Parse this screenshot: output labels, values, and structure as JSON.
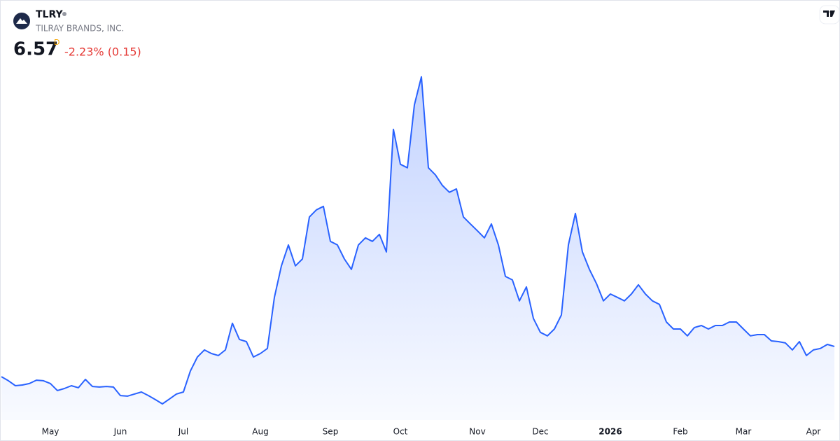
{
  "chart_data": {
    "type": "area",
    "symbol": "TLRY",
    "company": "TILRAY BRANDS, INC.",
    "price": 6.57,
    "price_flag": "D",
    "change": "-2.23% (0.15)",
    "color": "#2962ff",
    "ylim": [
      2.6,
      23
    ],
    "categories": [
      null,
      null,
      null,
      null,
      null,
      null,
      null,
      "May",
      null,
      null,
      null,
      null,
      null,
      null,
      null,
      null,
      null,
      "Jun",
      null,
      null,
      null,
      null,
      null,
      null,
      null,
      null,
      "Jul",
      null,
      null,
      null,
      null,
      null,
      null,
      null,
      null,
      null,
      null,
      "Aug",
      null,
      null,
      null,
      null,
      null,
      null,
      null,
      null,
      null,
      "Sep",
      null,
      null,
      null,
      null,
      null,
      null,
      null,
      null,
      null,
      "Oct",
      null,
      null,
      null,
      null,
      null,
      null,
      null,
      null,
      null,
      null,
      "Nov",
      null,
      null,
      null,
      null,
      null,
      null,
      null,
      null,
      "Dec",
      null,
      null,
      null,
      null,
      null,
      null,
      null,
      null,
      null,
      "2026",
      null,
      null,
      null,
      null,
      null,
      null,
      null,
      null,
      null,
      "Feb",
      null,
      null,
      null,
      null,
      null,
      null,
      null,
      null,
      "Mar",
      null,
      null,
      null,
      null,
      null,
      null,
      null,
      null,
      null,
      "Apr",
      null,
      null,
      null
    ],
    "values": [
      4.94,
      4.72,
      4.45,
      4.49,
      4.57,
      4.75,
      4.72,
      4.57,
      4.19,
      4.3,
      4.45,
      4.34,
      4.79,
      4.41,
      4.38,
      4.41,
      4.38,
      3.92,
      3.89,
      4.0,
      4.11,
      3.92,
      3.7,
      3.47,
      3.73,
      4.0,
      4.11,
      5.25,
      6.0,
      6.38,
      6.19,
      6.08,
      6.38,
      7.82,
      6.95,
      6.83,
      6.0,
      6.19,
      6.46,
      9.22,
      10.92,
      12.05,
      10.92,
      11.29,
      13.56,
      13.94,
      14.13,
      12.24,
      12.05,
      11.29,
      10.73,
      12.05,
      12.43,
      12.24,
      12.62,
      11.67,
      18.29,
      16.4,
      16.21,
      19.61,
      21.12,
      16.21,
      15.83,
      15.26,
      14.89,
      15.07,
      13.56,
      13.18,
      12.81,
      12.43,
      13.18,
      12.05,
      10.35,
      10.16,
      9.03,
      9.78,
      8.08,
      7.33,
      7.14,
      7.51,
      8.27,
      12.05,
      13.75,
      11.67,
      10.73,
      9.97,
      9.03,
      9.4,
      9.22,
      9.03,
      9.4,
      9.9,
      9.4,
      9.03,
      8.84,
      7.89,
      7.51,
      7.51,
      7.14,
      7.59,
      7.7,
      7.51,
      7.7,
      7.7,
      7.89,
      7.89,
      7.51,
      7.14,
      7.21,
      7.21,
      6.87,
      6.83,
      6.76,
      6.38,
      6.83,
      6.08,
      6.38,
      6.46,
      6.68,
      6.57
    ]
  }
}
